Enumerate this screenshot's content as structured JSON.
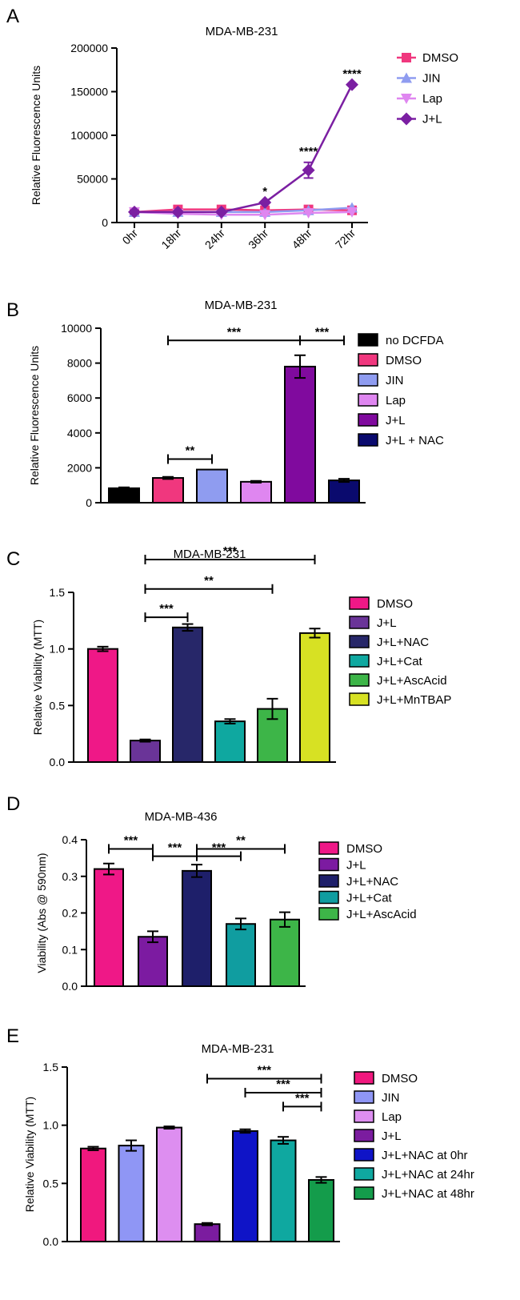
{
  "chart_data": [
    {
      "id": "A",
      "panel_label": "A",
      "type": "line",
      "title": "MDA-MB-231",
      "ylabel": "Relative Fluorescence Units",
      "xlabel": "",
      "ylim": [
        0,
        200000
      ],
      "yticks": [
        0,
        50000,
        100000,
        150000,
        200000
      ],
      "ytick_labels": [
        "0",
        "50000",
        "100000",
        "150000",
        "200000"
      ],
      "categories": [
        "0hr",
        "18hr",
        "24hr",
        "36hr",
        "48hr",
        "72hr"
      ],
      "legend_position": "top-right",
      "series": [
        {
          "name": "DMSO",
          "color": "#f0377e",
          "marker": "square",
          "values": [
            12000,
            15000,
            15000,
            14000,
            15000,
            14000
          ],
          "errors": [
            0,
            0,
            0,
            0,
            0,
            0
          ]
        },
        {
          "name": "JIN",
          "color": "#8f9cf0",
          "marker": "triangle-up",
          "values": [
            12000,
            12000,
            12000,
            12000,
            14000,
            17000
          ],
          "errors": [
            0,
            0,
            0,
            0,
            0,
            0
          ]
        },
        {
          "name": "Lap",
          "color": "#df86f0",
          "marker": "triangle-down",
          "values": [
            12000,
            10000,
            9000,
            9000,
            11000,
            12000
          ],
          "errors": [
            0,
            0,
            0,
            0,
            0,
            0
          ]
        },
        {
          "name": "J+L",
          "color": "#7b1fa2",
          "marker": "diamond",
          "values": [
            12000,
            12000,
            12000,
            23000,
            60000,
            158000
          ],
          "errors": [
            0,
            0,
            0,
            0,
            9000,
            0
          ]
        }
      ],
      "annotations": [
        {
          "category": "36hr",
          "value": 23000,
          "text": "*"
        },
        {
          "category": "48hr",
          "value": 69000,
          "text": "****"
        },
        {
          "category": "72hr",
          "value": 158000,
          "text": "****"
        }
      ]
    },
    {
      "id": "B",
      "panel_label": "B",
      "type": "bar",
      "title": "MDA-MB-231",
      "ylabel": "Relative Fluorescence Units",
      "ylim": [
        0,
        10000
      ],
      "yticks": [
        0,
        2000,
        4000,
        6000,
        8000,
        10000
      ],
      "ytick_labels": [
        "0",
        "2000",
        "4000",
        "6000",
        "8000",
        "10000"
      ],
      "categories": [
        "no DCFDA",
        "DMSO",
        "JIN",
        "Lap",
        "J+L",
        "J+L + NAC"
      ],
      "values": [
        830,
        1420,
        1900,
        1200,
        7800,
        1280
      ],
      "errors": [
        50,
        60,
        0,
        50,
        650,
        90
      ],
      "colors": [
        "#000000",
        "#f0377e",
        "#8f9cf0",
        "#df86f0",
        "#800a9e",
        "#0a0a6e"
      ],
      "legend_position": "right",
      "brackets": [
        {
          "from": 1,
          "to": 2,
          "level": 2500,
          "text": "**"
        },
        {
          "from": 1,
          "to": 4,
          "level": 9300,
          "text": "***"
        },
        {
          "from": 4,
          "to": 5,
          "level": 9300,
          "text": "***"
        }
      ]
    },
    {
      "id": "C",
      "panel_label": "C",
      "type": "bar",
      "title": "MDA-MB-231",
      "ylabel": "Relative Viability (MTT)",
      "ylim": [
        0,
        1.5
      ],
      "yticks": [
        0,
        0.5,
        1.0,
        1.5
      ],
      "ytick_labels": [
        "0.0",
        "0.5",
        "1.0",
        "1.5"
      ],
      "categories": [
        "DMSO",
        "J+L",
        "J+L+NAC",
        "J+L+Cat",
        "J+L+AscAcid",
        "J+L+MnTBAP"
      ],
      "values": [
        1.0,
        0.19,
        1.19,
        0.36,
        0.47,
        1.14
      ],
      "errors": [
        0.02,
        0.01,
        0.03,
        0.02,
        0.09,
        0.04
      ],
      "colors": [
        "#ef1887",
        "#6a3498",
        "#272769",
        "#0fa8a0",
        "#3db548",
        "#d7e123"
      ],
      "legend_position": "right",
      "brackets": [
        {
          "from": 1,
          "to": 2,
          "level": 1.28,
          "text": "***"
        },
        {
          "from": 1,
          "to": 4,
          "level": 1.53,
          "text": "**"
        },
        {
          "from": 1,
          "to": 5,
          "level": 1.79,
          "text": "***"
        }
      ]
    },
    {
      "id": "D",
      "panel_label": "D",
      "type": "bar",
      "title": "MDA-MB-436",
      "ylabel": "Viability (Abs @ 590nm)",
      "ylim": [
        0,
        0.4
      ],
      "yticks": [
        0,
        0.1,
        0.2,
        0.3,
        0.4
      ],
      "ytick_labels": [
        "0.0",
        "0.1",
        "0.2",
        "0.3",
        "0.4"
      ],
      "categories": [
        "DMSO",
        "J+L",
        "J+L+NAC",
        "J+L+Cat",
        "J+L+AscAcid"
      ],
      "values": [
        0.32,
        0.135,
        0.315,
        0.17,
        0.182
      ],
      "errors": [
        0.015,
        0.015,
        0.017,
        0.015,
        0.02
      ],
      "colors": [
        "#ef1887",
        "#7c1ba1",
        "#1e1f6a",
        "#109da0",
        "#3db548"
      ],
      "legend_position": "right",
      "brackets": [
        {
          "from": 0,
          "to": 1,
          "level": 0.375,
          "text": "***"
        },
        {
          "from": 1,
          "to": 2,
          "level": 0.355,
          "text": "***"
        },
        {
          "from": 2,
          "to": 3,
          "level": 0.355,
          "text": "***"
        },
        {
          "from": 2,
          "to": 4,
          "level": 0.375,
          "text": "**"
        }
      ]
    },
    {
      "id": "E",
      "panel_label": "E",
      "type": "bar",
      "title": "MDA-MB-231",
      "ylabel": "Relative Viability (MTT)",
      "ylim": [
        0,
        1.5
      ],
      "yticks": [
        0,
        0.5,
        1.0,
        1.5
      ],
      "ytick_labels": [
        "0.0",
        "0.5",
        "1.0",
        "1.5"
      ],
      "categories": [
        "DMSO",
        "JIN",
        "Lap",
        "J+L",
        "J+L+NAC at 0hr",
        "J+L+NAC at 24hr",
        "J+L+NAC at 48hr"
      ],
      "values": [
        0.8,
        0.825,
        0.98,
        0.15,
        0.95,
        0.87,
        0.53
      ],
      "errors": [
        0.015,
        0.045,
        0.01,
        0.01,
        0.015,
        0.03,
        0.025
      ],
      "colors": [
        "#f0187e",
        "#8f96f5",
        "#dd8ef0",
        "#7b1c9f",
        "#0f14c7",
        "#0fa8a0",
        "#149c4b"
      ],
      "legend_position": "right",
      "brackets": [
        {
          "from": 3,
          "to": 6,
          "level": 1.4,
          "text": "***"
        },
        {
          "from": 4,
          "to": 6,
          "level": 1.28,
          "text": "***"
        },
        {
          "from": 5,
          "to": 6,
          "level": 1.16,
          "text": "***"
        }
      ]
    }
  ]
}
